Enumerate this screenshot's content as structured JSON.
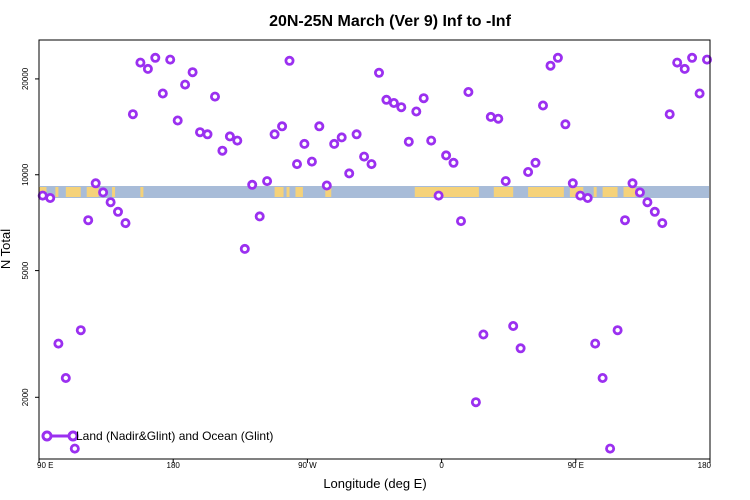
{
  "chart_data": {
    "type": "scatter",
    "title": "20N-25N March (Ver 9)   Inf to -Inf",
    "xlabel": "Longitude (deg E)",
    "ylabel": "N Total",
    "y_scale": "log",
    "xlim": [
      90,
      540
    ],
    "ylim": [
      1280,
      26500
    ],
    "x_ticks": [
      {
        "value": 90,
        "label": "90 E"
      },
      {
        "value": 180,
        "label": "180"
      },
      {
        "value": 270,
        "label": "90 W"
      },
      {
        "value": 360,
        "label": "0"
      },
      {
        "value": 450,
        "label": "90 E"
      },
      {
        "value": 540,
        "label": "180"
      }
    ],
    "y_ticks": [
      {
        "value": 2000,
        "label": "2000"
      },
      {
        "value": 5000,
        "label": "5000"
      },
      {
        "value": 10000,
        "label": "10000"
      },
      {
        "value": 20000,
        "label": "20000"
      }
    ],
    "grid": false,
    "legend": {
      "position": "bottom-left",
      "entries": [
        {
          "label": "Land (Nadir&Glint) and Ocean (Glint)",
          "color": "#9b30f0"
        }
      ]
    },
    "marker_color": "#9b30f0",
    "land_color": "#f5d27a",
    "ocean_color": "#a8bcd8",
    "series": [
      {
        "name": "Land (Nadir&Glint) and Ocean (Glint)",
        "points": [
          [
            92.5,
            8600
          ],
          [
            97.5,
            8450
          ],
          [
            103,
            2950
          ],
          [
            108,
            2300
          ],
          [
            114,
            1380
          ],
          [
            118,
            3250
          ],
          [
            123,
            7200
          ],
          [
            128,
            9400
          ],
          [
            133,
            8800
          ],
          [
            138,
            8200
          ],
          [
            143,
            7650
          ],
          [
            148,
            7050
          ],
          [
            153,
            15500
          ],
          [
            158,
            22500
          ],
          [
            163,
            21500
          ],
          [
            168,
            23300
          ],
          [
            173,
            18000
          ],
          [
            178,
            23000
          ],
          [
            183,
            14800
          ],
          [
            188,
            19200
          ],
          [
            193,
            21000
          ],
          [
            198,
            13600
          ],
          [
            203,
            13400
          ],
          [
            208,
            17600
          ],
          [
            213,
            11900
          ],
          [
            218,
            13200
          ],
          [
            223,
            12800
          ],
          [
            228,
            5850
          ],
          [
            233,
            9300
          ],
          [
            238,
            7400
          ],
          [
            243,
            9550
          ],
          [
            248,
            13400
          ],
          [
            253,
            14200
          ],
          [
            258,
            22800
          ],
          [
            263,
            10800
          ],
          [
            268,
            12500
          ],
          [
            273,
            11000
          ],
          [
            278,
            14200
          ],
          [
            283,
            9250
          ],
          [
            288,
            12500
          ],
          [
            293,
            13100
          ],
          [
            298,
            10100
          ],
          [
            303,
            13400
          ],
          [
            308,
            11400
          ],
          [
            313,
            10800
          ],
          [
            318,
            20900
          ],
          [
            323,
            17200
          ],
          [
            328,
            16800
          ],
          [
            333,
            16300
          ],
          [
            338,
            12700
          ],
          [
            343,
            15800
          ],
          [
            348,
            17400
          ],
          [
            353,
            12800
          ],
          [
            358,
            8600
          ],
          [
            363,
            11500
          ],
          [
            368,
            10900
          ],
          [
            373,
            7150
          ],
          [
            378,
            18200
          ],
          [
            383,
            1930
          ],
          [
            388,
            3150
          ],
          [
            393,
            15200
          ],
          [
            398,
            15000
          ],
          [
            403,
            9550
          ],
          [
            408,
            3350
          ],
          [
            413,
            2850
          ],
          [
            418,
            10200
          ],
          [
            423,
            10900
          ],
          [
            428,
            16500
          ],
          [
            433,
            22000
          ],
          [
            438,
            23300
          ],
          [
            443,
            14400
          ],
          [
            448,
            9400
          ],
          [
            453,
            8600
          ],
          [
            458,
            8450
          ],
          [
            463,
            2950
          ],
          [
            468,
            2300
          ],
          [
            473,
            1380
          ],
          [
            478,
            3250
          ],
          [
            483,
            7200
          ],
          [
            488,
            9400
          ],
          [
            493,
            8800
          ],
          [
            498,
            8200
          ],
          [
            503,
            7650
          ],
          [
            508,
            7050
          ],
          [
            513,
            15500
          ],
          [
            518,
            22500
          ],
          [
            523,
            21500
          ],
          [
            528,
            23300
          ],
          [
            533,
            18000
          ],
          [
            538,
            23000
          ]
        ]
      }
    ]
  }
}
